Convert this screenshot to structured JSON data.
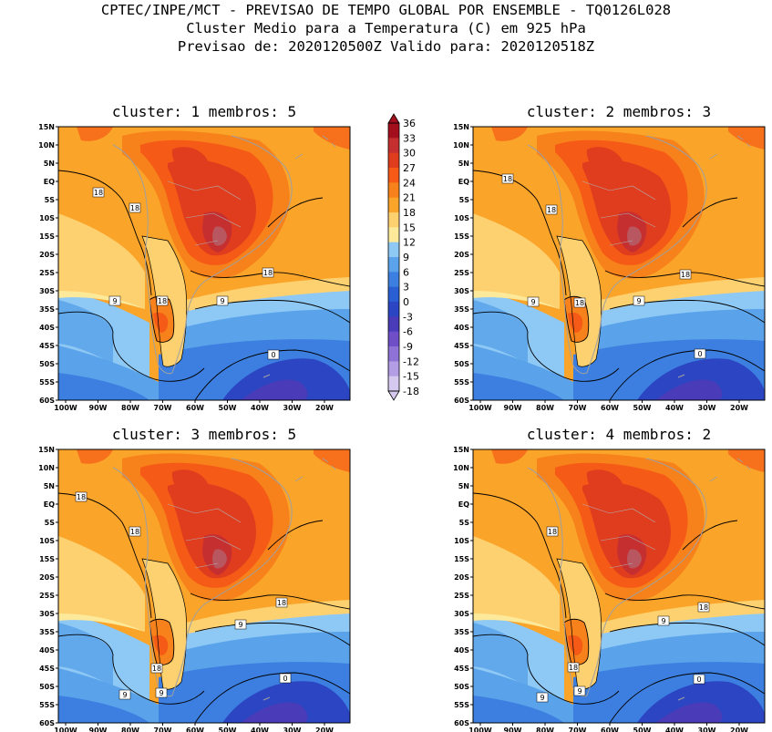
{
  "header": {
    "line1": "CPTEC/INPE/MCT - PREVISAO DE TEMPO GLOBAL POR ENSEMBLE - TQ0126L028",
    "line2": "Cluster Medio para a Temperatura (C) em 925 hPa",
    "line3": "Previsao de: 2020120500Z   Valido para: 2020120518Z"
  },
  "panels": [
    {
      "title": "cluster: 1   membros: 5"
    },
    {
      "title": "cluster: 2   membros: 3"
    },
    {
      "title": "cluster: 3   membros: 5"
    },
    {
      "title": "cluster: 4   membros: 2"
    }
  ],
  "lat_ticks": [
    "15N",
    "10N",
    "5N",
    "EQ",
    "5S",
    "10S",
    "15S",
    "20S",
    "25S",
    "30S",
    "35S",
    "40S",
    "45S",
    "50S",
    "55S",
    "60S"
  ],
  "lon_ticks": [
    "100W",
    "90W",
    "80W",
    "70W",
    "60W",
    "50W",
    "40W",
    "30W",
    "20W"
  ],
  "contour_labels": {
    "panel1": [
      "18",
      "18",
      "18",
      "18",
      "9",
      "9",
      "0"
    ],
    "panel2": [
      "18",
      "18",
      "18",
      "18",
      "9",
      "9",
      "0"
    ],
    "panel3": [
      "18",
      "18",
      "18",
      "18",
      "9",
      "9",
      "9",
      "0"
    ],
    "panel4": [
      "18",
      "18",
      "18",
      "9",
      "9",
      "9",
      "0"
    ]
  },
  "colorbar": {
    "levels": [
      "36",
      "33",
      "30",
      "27",
      "24",
      "21",
      "18",
      "15",
      "12",
      "9",
      "6",
      "3",
      "0",
      "-3",
      "-6",
      "-9",
      "-12",
      "-15",
      "-18"
    ],
    "colors": [
      "#a40f1e",
      "#c62f2f",
      "#e03d1f",
      "#f55a16",
      "#f7811a",
      "#fba42a",
      "#fed170",
      "#fde99a",
      "#8ec8f5",
      "#5aa3ea",
      "#3c7fe0",
      "#2a5fd4",
      "#2c45c3",
      "#4a3bb8",
      "#6e4fc8",
      "#8e72d6",
      "#b39de4",
      "#d6c9f0"
    ]
  }
}
